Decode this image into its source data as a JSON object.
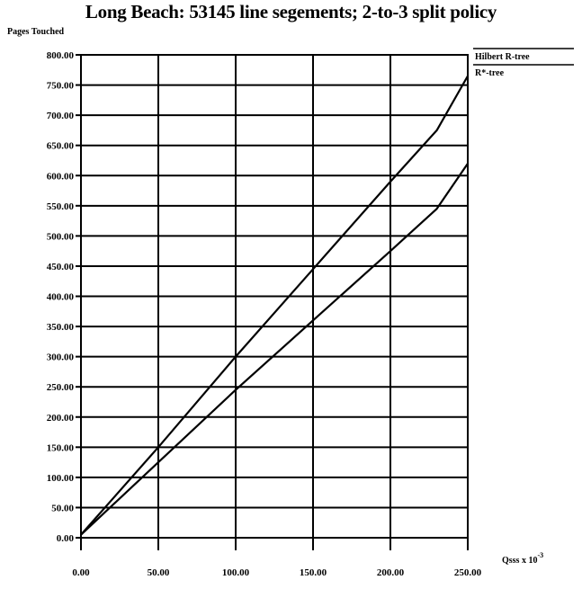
{
  "chart_data": {
    "type": "line",
    "title": "Long Beach: 53145 line segements; 2-to-3 split policy",
    "ylabel": "Pages Touched",
    "xlabel": "Qsss x 10",
    "xlabel_exponent": "-3",
    "xlim": [
      0,
      250
    ],
    "ylim": [
      0,
      800
    ],
    "grid": true,
    "legend_placement": "top-right, outside plot",
    "x_ticks": [
      "0.00",
      "50.00",
      "100.00",
      "150.00",
      "200.00",
      "250.00"
    ],
    "y_ticks": [
      "0.00",
      "50.00",
      "100.00",
      "150.00",
      "200.00",
      "250.00",
      "300.00",
      "350.00",
      "400.00",
      "450.00",
      "500.00",
      "550.00",
      "600.00",
      "650.00",
      "700.00",
      "750.00",
      "800.00"
    ],
    "series": [
      {
        "name": "Hilbert R-tree",
        "color": "#000000",
        "x": [
          0,
          50,
          100,
          150,
          200,
          230,
          250
        ],
        "y": [
          5,
          150,
          300,
          445,
          590,
          675,
          765
        ]
      },
      {
        "name": "R*-tree",
        "color": "#000000",
        "x": [
          0,
          50,
          100,
          150,
          200,
          230,
          250
        ],
        "y": [
          5,
          125,
          245,
          360,
          475,
          545,
          620
        ]
      }
    ]
  }
}
